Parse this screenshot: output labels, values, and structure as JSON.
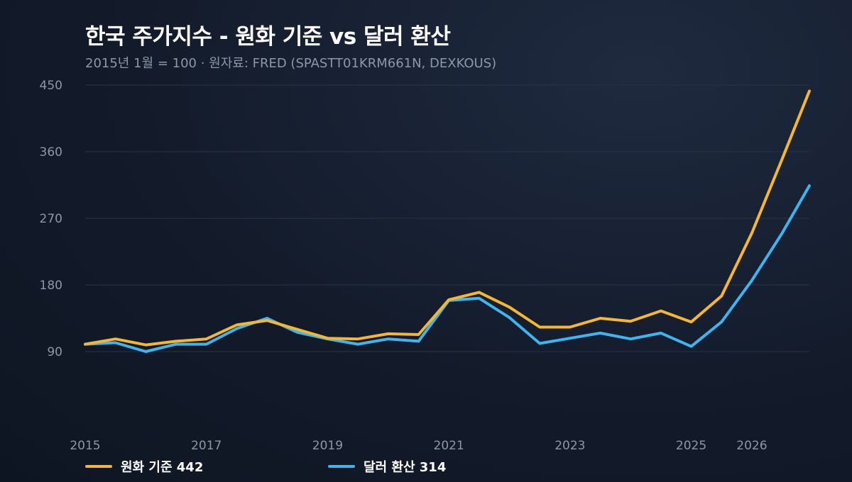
{
  "chart_data": {
    "type": "line",
    "title": "한국 주가지수 - 원화 기준 vs 달러 환산",
    "subtitle": "2015년 1월 = 100  ·  원자료: FRED (SPASTT01KRM661N, DEXKOUS)",
    "x": [
      2015.0,
      2015.5,
      2016.0,
      2016.5,
      2017.0,
      2017.5,
      2018.0,
      2018.5,
      2019.0,
      2019.5,
      2020.0,
      2020.5,
      2021.0,
      2021.5,
      2022.0,
      2022.5,
      2023.0,
      2023.5,
      2024.0,
      2024.5,
      2025.0,
      2025.5,
      2026.0,
      2026.5,
      2026.95
    ],
    "series": [
      {
        "name": "원화 기준",
        "label": "원화 기준 442",
        "color": "#f5b731",
        "values": [
          100,
          107,
          99,
          104,
          107,
          126,
          132,
          120,
          108,
          107,
          114,
          113,
          160,
          170,
          150,
          123,
          123,
          135,
          131,
          145,
          130,
          165,
          250,
          350,
          442
        ]
      },
      {
        "name": "달러 환산",
        "label": "달러 환산 314",
        "color": "#3eb4f0",
        "values": [
          100,
          102,
          90,
          100,
          100,
          121,
          135,
          116,
          107,
          100,
          107,
          104,
          159,
          162,
          136,
          101,
          108,
          115,
          107,
          115,
          97,
          130,
          186,
          250,
          314
        ]
      }
    ],
    "yticks": [
      90,
      180,
      270,
      360,
      450
    ],
    "xticks": [
      2015,
      2017,
      2019,
      2021,
      2023,
      2025,
      2026
    ],
    "ylim": [
      0,
      450
    ],
    "xlim": [
      2015,
      2026.95
    ],
    "grid": "horizontal",
    "legend": "bottom-left"
  }
}
